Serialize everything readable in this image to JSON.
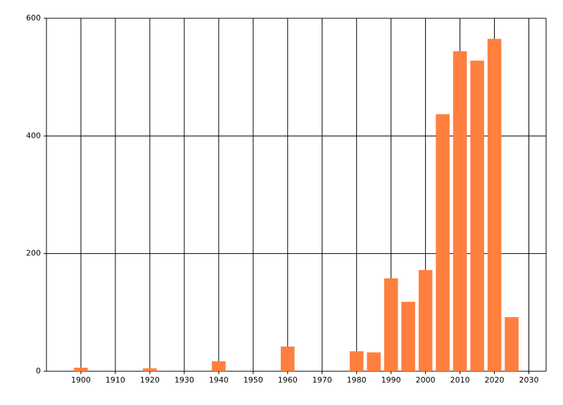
{
  "chart_data": {
    "type": "bar",
    "x": [
      1900,
      1920,
      1940,
      1960,
      1980,
      1985,
      1990,
      1995,
      2000,
      2005,
      2010,
      2015,
      2020,
      2025
    ],
    "values": [
      6,
      5,
      17,
      42,
      34,
      32,
      158,
      118,
      172,
      437,
      544,
      528,
      565,
      92
    ],
    "color": "#ff7f3f",
    "xlim": [
      1890,
      2035
    ],
    "xticks": [
      1900,
      1910,
      1920,
      1930,
      1940,
      1950,
      1960,
      1970,
      1980,
      1990,
      2000,
      2010,
      2020,
      2030
    ],
    "ylim": [
      0,
      600
    ],
    "yticks": [
      0,
      200,
      400,
      600
    ],
    "grid": true
  }
}
